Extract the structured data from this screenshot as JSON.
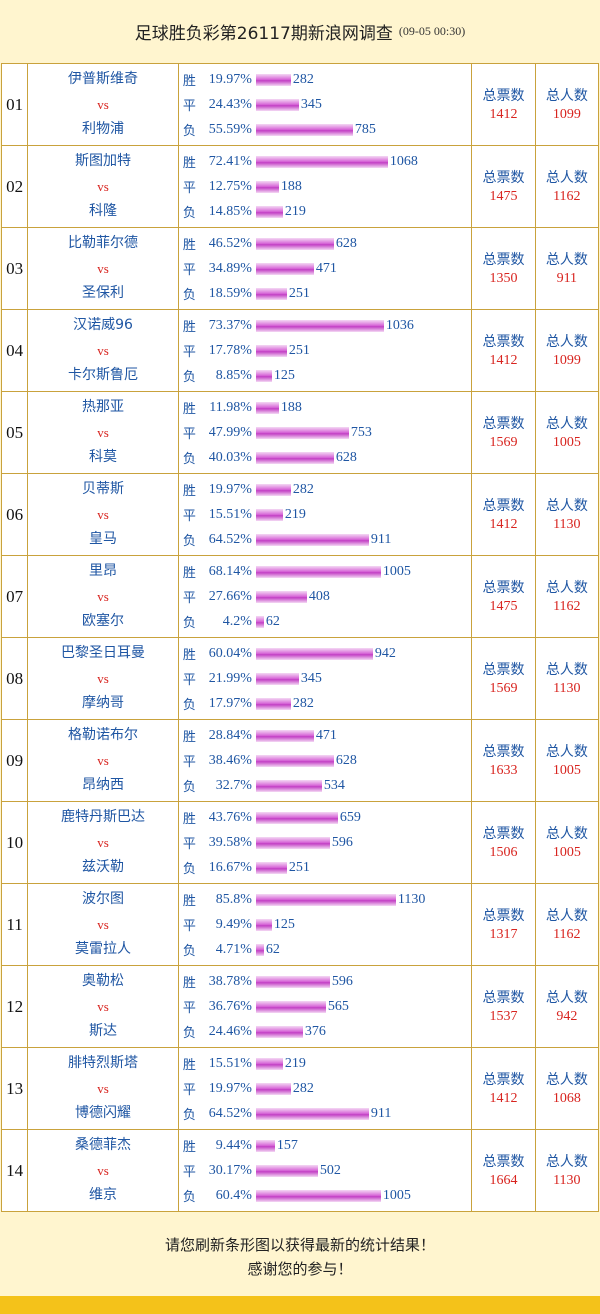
{
  "header": {
    "title": "足球胜负彩第26117期新浪网调查",
    "time": "(09-05 00:30)"
  },
  "labels": {
    "win": "胜",
    "draw": "平",
    "lose": "负",
    "vs": "vs",
    "total_votes": "总票数",
    "total_people": "总人数"
  },
  "colors": {
    "background": "#fff5cf",
    "border": "#c9a23c",
    "blue": "#1f56a3",
    "red": "#d8241f",
    "bar": "#c23fc4",
    "bottom_bar": "#f4c21a"
  },
  "matches": [
    {
      "no": "01",
      "home": "伊普斯维奇",
      "away": "利物浦",
      "win_pct": "19.97%",
      "win": 282,
      "draw_pct": "24.43%",
      "draw": 345,
      "lose_pct": "55.59%",
      "lose": 785,
      "votes": "1412",
      "people": "1099"
    },
    {
      "no": "02",
      "home": "斯图加特",
      "away": "科隆",
      "win_pct": "72.41%",
      "win": 1068,
      "draw_pct": "12.75%",
      "draw": 188,
      "lose_pct": "14.85%",
      "lose": 219,
      "votes": "1475",
      "people": "1162"
    },
    {
      "no": "03",
      "home": "比勒菲尔德",
      "away": "圣保利",
      "win_pct": "46.52%",
      "win": 628,
      "draw_pct": "34.89%",
      "draw": 471,
      "lose_pct": "18.59%",
      "lose": 251,
      "votes": "1350",
      "people": "911"
    },
    {
      "no": "04",
      "home": "汉诺威96",
      "away": "卡尔斯鲁厄",
      "win_pct": "73.37%",
      "win": 1036,
      "draw_pct": "17.78%",
      "draw": 251,
      "lose_pct": "8.85%",
      "lose": 125,
      "votes": "1412",
      "people": "1099"
    },
    {
      "no": "05",
      "home": "热那亚",
      "away": "科莫",
      "win_pct": "11.98%",
      "win": 188,
      "draw_pct": "47.99%",
      "draw": 753,
      "lose_pct": "40.03%",
      "lose": 628,
      "votes": "1569",
      "people": "1005"
    },
    {
      "no": "06",
      "home": "贝蒂斯",
      "away": "皇马",
      "win_pct": "19.97%",
      "win": 282,
      "draw_pct": "15.51%",
      "draw": 219,
      "lose_pct": "64.52%",
      "lose": 911,
      "votes": "1412",
      "people": "1130"
    },
    {
      "no": "07",
      "home": "里昂",
      "away": "欧塞尔",
      "win_pct": "68.14%",
      "win": 1005,
      "draw_pct": "27.66%",
      "draw": 408,
      "lose_pct": "4.2%",
      "lose": 62,
      "votes": "1475",
      "people": "1162"
    },
    {
      "no": "08",
      "home": "巴黎圣日耳曼",
      "away": "摩纳哥",
      "win_pct": "60.04%",
      "win": 942,
      "draw_pct": "21.99%",
      "draw": 345,
      "lose_pct": "17.97%",
      "lose": 282,
      "votes": "1569",
      "people": "1130"
    },
    {
      "no": "09",
      "home": "格勒诺布尔",
      "away": "昂纳西",
      "win_pct": "28.84%",
      "win": 471,
      "draw_pct": "38.46%",
      "draw": 628,
      "lose_pct": "32.7%",
      "lose": 534,
      "votes": "1633",
      "people": "1005"
    },
    {
      "no": "10",
      "home": "鹿特丹斯巴达",
      "away": "兹沃勒",
      "win_pct": "43.76%",
      "win": 659,
      "draw_pct": "39.58%",
      "draw": 596,
      "lose_pct": "16.67%",
      "lose": 251,
      "votes": "1506",
      "people": "1005"
    },
    {
      "no": "11",
      "home": "波尔图",
      "away": "莫雷拉人",
      "win_pct": "85.8%",
      "win": 1130,
      "draw_pct": "9.49%",
      "draw": 125,
      "lose_pct": "4.71%",
      "lose": 62,
      "votes": "1317",
      "people": "1162"
    },
    {
      "no": "12",
      "home": "奥勒松",
      "away": "斯达",
      "win_pct": "38.78%",
      "win": 596,
      "draw_pct": "36.76%",
      "draw": 565,
      "lose_pct": "24.46%",
      "lose": 376,
      "votes": "1537",
      "people": "942"
    },
    {
      "no": "13",
      "home": "腓特烈斯塔",
      "away": "博德闪耀",
      "win_pct": "15.51%",
      "win": 219,
      "draw_pct": "19.97%",
      "draw": 282,
      "lose_pct": "64.52%",
      "lose": 911,
      "votes": "1412",
      "people": "1068"
    },
    {
      "no": "14",
      "home": "桑德菲杰",
      "away": "维京",
      "win_pct": "9.44%",
      "win": 157,
      "draw_pct": "30.17%",
      "draw": 502,
      "lose_pct": "60.4%",
      "lose": 1005,
      "votes": "1664",
      "people": "1130"
    }
  ],
  "footer": {
    "line1": "请您刷新条形图以获得最新的统计结果！",
    "line2": "感谢您的参与！"
  }
}
